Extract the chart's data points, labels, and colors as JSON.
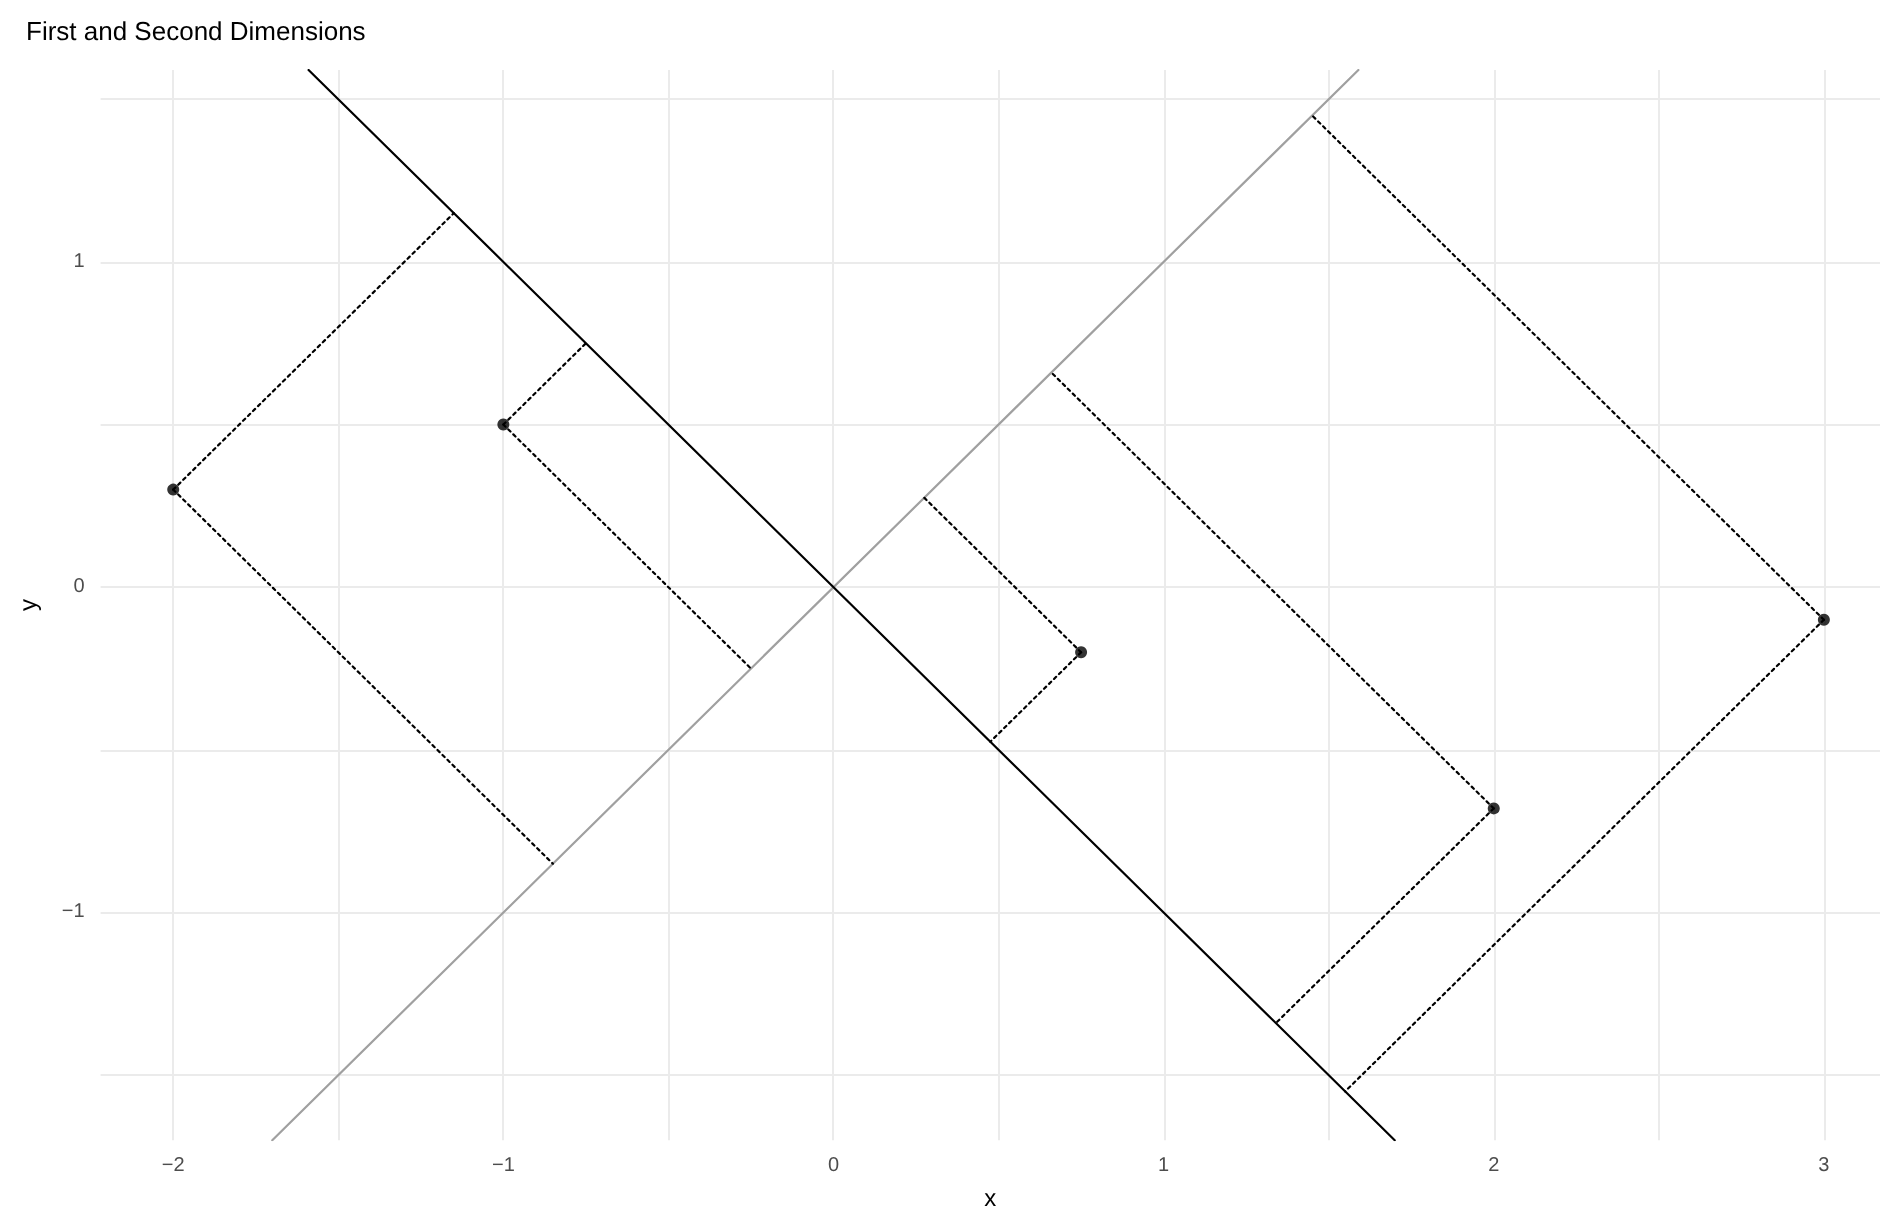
{
  "chart_data": {
    "type": "scatter",
    "title": "First and Second Dimensions",
    "xlabel": "x",
    "ylabel": "y",
    "xlim": [
      -2.22,
      3.17
    ],
    "ylim": [
      -1.7,
      1.59
    ],
    "xticks": [
      -2,
      {
        "value": -1.5,
        "label": null
      },
      -1,
      {
        "value": -0.5,
        "label": null
      },
      0,
      {
        "value": 0.5,
        "label": null
      },
      1,
      {
        "value": 1.5,
        "label": null
      },
      2,
      {
        "value": 2.5,
        "label": null
      },
      3
    ],
    "yticks": [
      {
        "value": -1.5,
        "label": null
      },
      -1,
      {
        "value": -0.5,
        "label": null
      },
      0,
      {
        "value": 0.5,
        "label": null
      },
      1,
      {
        "value": 1.5,
        "label": null
      }
    ],
    "grid": true,
    "series": [
      {
        "type": "line",
        "color": "#a0a0a0",
        "line_style": "solid",
        "marker": "none",
        "x": [
          -1.7,
          1.59
        ],
        "values": [
          -1.7,
          1.59
        ]
      },
      {
        "type": "line",
        "color": "#000000",
        "line_style": "solid",
        "marker": "none",
        "x": [
          -1.59,
          1.7
        ],
        "values": [
          1.59,
          -1.7
        ]
      },
      {
        "type": "line",
        "color": "#000000",
        "line_style": "dotted",
        "marker": "none",
        "x": [
          -2,
          -0.85
        ],
        "values": [
          0.3,
          -0.85
        ]
      },
      {
        "type": "line",
        "color": "#000000",
        "line_style": "dotted",
        "marker": "none",
        "x": [
          -2,
          -1.15
        ],
        "values": [
          0.3,
          1.15
        ]
      },
      {
        "type": "line",
        "color": "#000000",
        "line_style": "dotted",
        "marker": "none",
        "x": [
          -1,
          -0.25
        ],
        "values": [
          0.5,
          -0.25
        ]
      },
      {
        "type": "line",
        "color": "#000000",
        "line_style": "dotted",
        "marker": "none",
        "x": [
          -1,
          -0.75
        ],
        "values": [
          0.5,
          0.75
        ]
      },
      {
        "type": "line",
        "color": "#000000",
        "line_style": "dotted",
        "marker": "none",
        "x": [
          0.75,
          0.275
        ],
        "values": [
          -0.2,
          0.275
        ]
      },
      {
        "type": "line",
        "color": "#000000",
        "line_style": "dotted",
        "marker": "none",
        "x": [
          0.75,
          0.475
        ],
        "values": [
          -0.2,
          -0.475
        ]
      },
      {
        "type": "line",
        "color": "#000000",
        "line_style": "dotted",
        "marker": "none",
        "x": [
          2,
          0.66
        ],
        "values": [
          -0.68,
          0.66
        ]
      },
      {
        "type": "line",
        "color": "#000000",
        "line_style": "dotted",
        "marker": "none",
        "x": [
          2,
          1.34
        ],
        "values": [
          -0.68,
          -1.34
        ]
      },
      {
        "type": "line",
        "color": "#000000",
        "line_style": "dotted",
        "marker": "none",
        "x": [
          3,
          1.45
        ],
        "values": [
          -0.1,
          1.45
        ]
      },
      {
        "type": "line",
        "color": "#000000",
        "line_style": "dotted",
        "marker": "none",
        "x": [
          3,
          1.55
        ],
        "values": [
          -0.1,
          -1.55
        ]
      },
      {
        "color": "#000000",
        "marker": "circle",
        "x": [
          -2,
          -1,
          0.75,
          2,
          3
        ],
        "values": [
          0.3,
          0.5,
          -0.2,
          -0.68,
          -0.1
        ]
      }
    ]
  }
}
